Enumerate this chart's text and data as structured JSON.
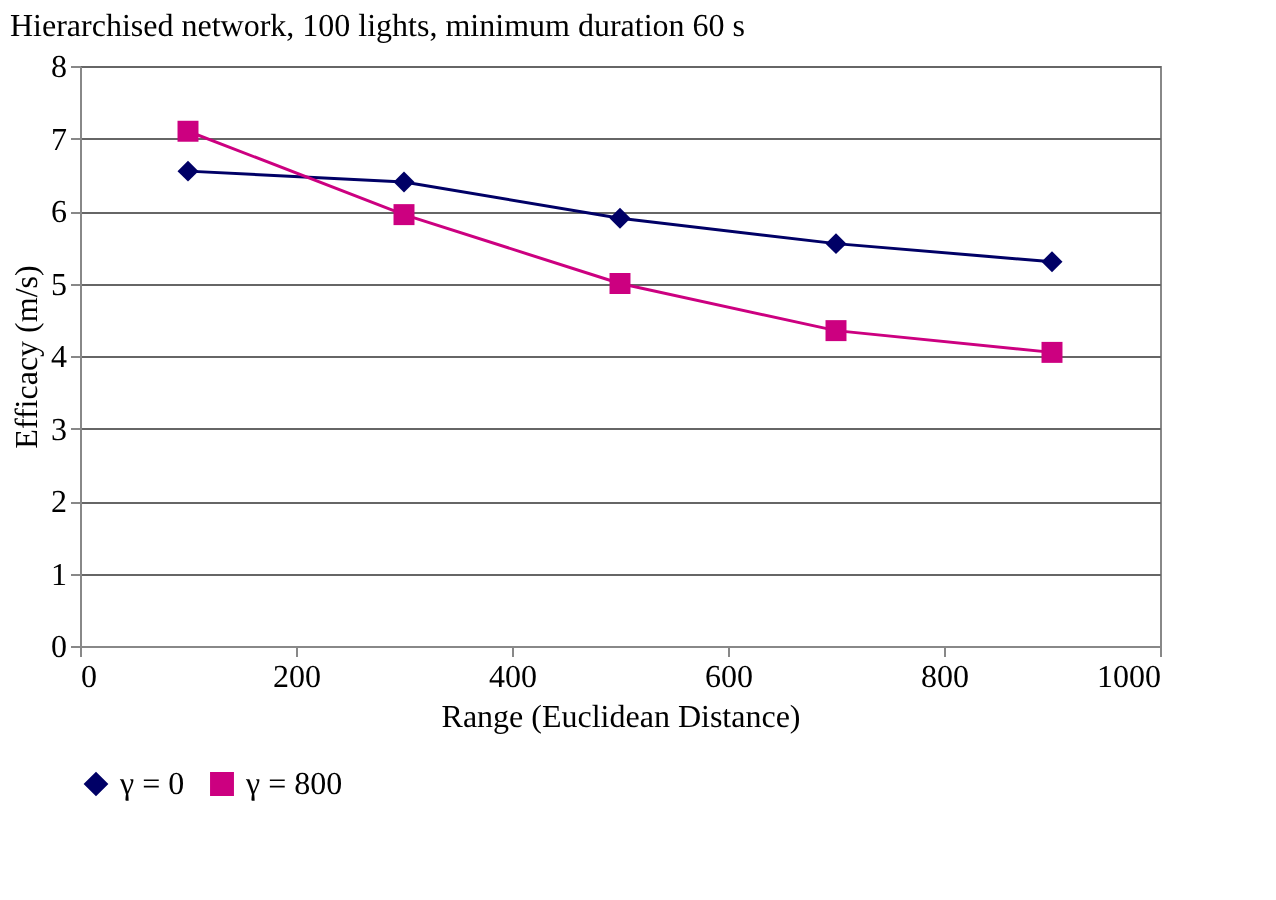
{
  "chart_data": {
    "type": "line",
    "title": "Hierarchised network, 100 lights, minimum duration 60 s",
    "xlabel": "Range (Euclidean Distance)",
    "ylabel": "Efficacy (m/s)",
    "x": [
      100,
      300,
      500,
      700,
      900
    ],
    "series": [
      {
        "name": "γ = 0",
        "color": "#000066",
        "marker": "diamond",
        "values": [
          6.55,
          6.4,
          5.9,
          5.55,
          5.3
        ]
      },
      {
        "name": "γ = 800",
        "color": "#cc0080",
        "marker": "square",
        "values": [
          7.1,
          5.95,
          5.0,
          4.35,
          4.05
        ]
      }
    ],
    "xlim": [
      0,
      1000
    ],
    "xticks": [
      0,
      200,
      400,
      600,
      800,
      1000
    ],
    "ylim": [
      0,
      8
    ],
    "yticks": [
      0,
      1,
      2,
      3,
      4,
      5,
      6,
      7,
      8
    ],
    "grid": "y",
    "legend": "bottom"
  }
}
